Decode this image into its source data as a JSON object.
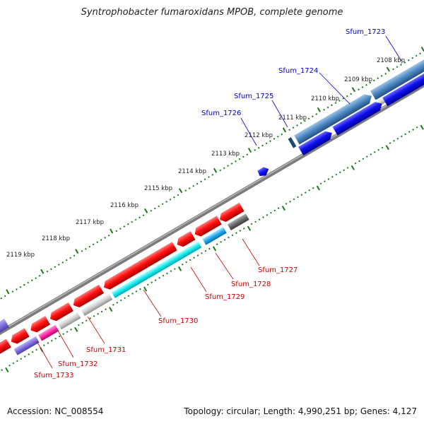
{
  "title": "Syntrophobacter fumaroxidans MPOB, complete genome",
  "footer": {
    "accession": "Accession: NC_008554",
    "summary": "Topology: circular; Length: 4,990,251 bp; Genes: 4,127"
  },
  "kbp_ticks": [
    "2108 kbp",
    "2109 kbp",
    "2110 kbp",
    "2111 kbp",
    "2112 kbp",
    "2113 kbp",
    "2114 kbp",
    "2115 kbp",
    "2116 kbp",
    "2117 kbp",
    "2118 kbp",
    "2119 kbp"
  ],
  "genes_top": [
    "Sfum_1723",
    "Sfum_1724",
    "Sfum_1725",
    "Sfum_1726"
  ],
  "genes_bottom": [
    "Sfum_1727",
    "Sfum_1728",
    "Sfum_1729",
    "Sfum_1730",
    "Sfum_1731",
    "Sfum_1732",
    "Sfum_1733"
  ],
  "colors": {
    "top_label": "#0000cc",
    "bottom_label": "#cc0000",
    "tick": "#1a7a1a",
    "backbone": "#7a7a7a"
  }
}
